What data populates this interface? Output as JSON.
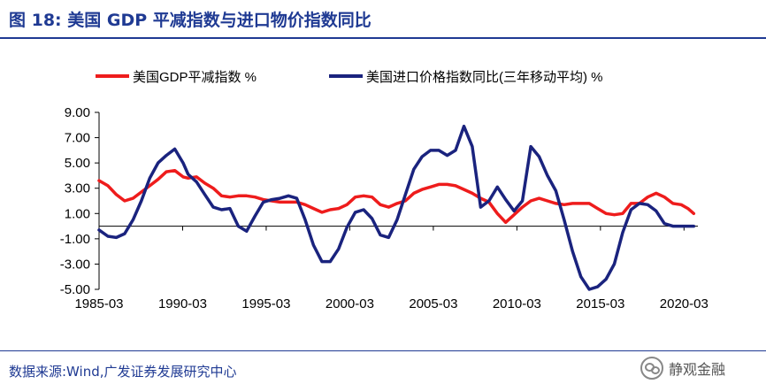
{
  "title": "图 18:  美国 GDP 平减指数与进口物价指数同比",
  "source": "数据来源:Wind,广发证券发展研究中心",
  "watermark": {
    "text": "静观金融",
    "icon": "wechat-icon"
  },
  "colors": {
    "title": "#1f3a93",
    "series_red": "#ee1c1c",
    "series_navy": "#1a237e",
    "axis": "#000000"
  },
  "chart_data": {
    "type": "line",
    "title": "",
    "xlabel": "",
    "ylabel": "",
    "ylim": [
      -5,
      9
    ],
    "xlim": [
      1985.17,
      2021.0
    ],
    "grid": false,
    "legend": "top",
    "y_ticks": [
      9,
      7,
      5,
      3,
      1,
      -1,
      -3,
      -5
    ],
    "y_tick_labels": [
      "9.00",
      "7.00",
      "5.00",
      "3.00",
      "1.00",
      "-1.00",
      "-3.00",
      "-5.00"
    ],
    "x_tick_labels": [
      "1985-03",
      "1990-03",
      "1995-03",
      "2000-03",
      "2005-03",
      "2010-03",
      "2015-03",
      "2020-03"
    ],
    "x_ticks": [
      1985.17,
      1990.17,
      1995.17,
      2000.17,
      2005.17,
      2010.17,
      2015.17,
      2020.17
    ],
    "series": [
      {
        "name": "美国GDP平减指数 %",
        "color": "#ee1c1c",
        "x": [
          1985.17,
          1985.7,
          1986.2,
          1986.7,
          1987.2,
          1987.7,
          1988.2,
          1988.7,
          1989.2,
          1989.7,
          1990.2,
          1990.5,
          1991.0,
          1991.5,
          1992.0,
          1992.5,
          1993.0,
          1993.5,
          1994.0,
          1994.5,
          1995.0,
          1995.5,
          1996.0,
          1996.5,
          1997.0,
          1997.5,
          1998.0,
          1998.5,
          1999.0,
          1999.5,
          2000.0,
          2000.5,
          2001.0,
          2001.5,
          2002.0,
          2002.5,
          2003.0,
          2003.5,
          2004.0,
          2004.5,
          2005.0,
          2005.5,
          2006.0,
          2006.5,
          2007.0,
          2007.5,
          2008.0,
          2008.5,
          2009.0,
          2009.5,
          2010.0,
          2010.5,
          2011.0,
          2011.5,
          2012.0,
          2012.5,
          2013.0,
          2013.5,
          2014.0,
          2014.5,
          2015.0,
          2015.5,
          2016.0,
          2016.5,
          2017.0,
          2017.5,
          2018.0,
          2018.5,
          2019.0,
          2019.5,
          2020.0,
          2020.4,
          2020.75
        ],
        "values": [
          3.6,
          3.2,
          2.5,
          2.0,
          2.2,
          2.7,
          3.2,
          3.7,
          4.3,
          4.4,
          3.9,
          3.8,
          3.9,
          3.4,
          3.0,
          2.4,
          2.3,
          2.4,
          2.4,
          2.3,
          2.1,
          2.0,
          1.9,
          1.9,
          1.9,
          1.7,
          1.4,
          1.1,
          1.3,
          1.4,
          1.7,
          2.3,
          2.4,
          2.3,
          1.7,
          1.5,
          1.8,
          2.0,
          2.6,
          2.9,
          3.1,
          3.3,
          3.3,
          3.2,
          2.9,
          2.6,
          2.2,
          1.9,
          1.0,
          0.3,
          0.9,
          1.5,
          2.0,
          2.2,
          2.0,
          1.8,
          1.7,
          1.8,
          1.8,
          1.8,
          1.4,
          1.0,
          0.9,
          1.0,
          1.8,
          1.8,
          2.3,
          2.6,
          2.3,
          1.8,
          1.7,
          1.4,
          1.0
        ]
      },
      {
        "name": "美国进口价格指数同比(三年移动平均) %",
        "color": "#1a237e",
        "x": [
          1985.17,
          1985.7,
          1986.2,
          1986.7,
          1987.2,
          1987.7,
          1988.2,
          1988.7,
          1989.2,
          1989.7,
          1990.2,
          1990.5,
          1991.0,
          1991.5,
          1992.0,
          1992.5,
          1993.0,
          1993.5,
          1994.0,
          1994.5,
          1995.0,
          1995.5,
          1996.0,
          1996.5,
          1997.0,
          1997.5,
          1998.0,
          1998.5,
          1999.0,
          1999.5,
          2000.0,
          2000.5,
          2001.0,
          2001.5,
          2002.0,
          2002.5,
          2003.0,
          2003.5,
          2004.0,
          2004.5,
          2005.0,
          2005.5,
          2006.0,
          2006.5,
          2007.0,
          2007.5,
          2008.0,
          2008.5,
          2009.0,
          2009.5,
          2010.0,
          2010.5,
          2011.0,
          2011.5,
          2012.0,
          2012.5,
          2013.0,
          2013.5,
          2014.0,
          2014.5,
          2015.0,
          2015.5,
          2016.0,
          2016.5,
          2017.0,
          2017.5,
          2018.0,
          2018.5,
          2019.0,
          2019.5,
          2020.0,
          2020.4,
          2020.75
        ],
        "values": [
          -0.3,
          -0.8,
          -0.9,
          -0.6,
          0.5,
          2.0,
          3.8,
          5.0,
          5.6,
          6.1,
          5.0,
          4.1,
          3.5,
          2.5,
          1.5,
          1.3,
          1.4,
          0.0,
          -0.4,
          0.8,
          1.9,
          2.1,
          2.2,
          2.4,
          2.2,
          0.5,
          -1.5,
          -2.8,
          -2.8,
          -1.8,
          -0.1,
          1.1,
          1.3,
          0.6,
          -0.7,
          -0.9,
          0.5,
          2.5,
          4.5,
          5.5,
          6.0,
          6.0,
          5.6,
          6.0,
          7.9,
          6.3,
          1.5,
          2.0,
          3.1,
          2.1,
          1.2,
          2.0,
          6.3,
          5.5,
          4.0,
          2.8,
          0.5,
          -2.0,
          -4.0,
          -5.0,
          -4.8,
          -4.2,
          -3.0,
          -0.5,
          1.3,
          1.8,
          1.7,
          1.2,
          0.2,
          0.0,
          0.0,
          0.0,
          0.0
        ]
      }
    ]
  }
}
